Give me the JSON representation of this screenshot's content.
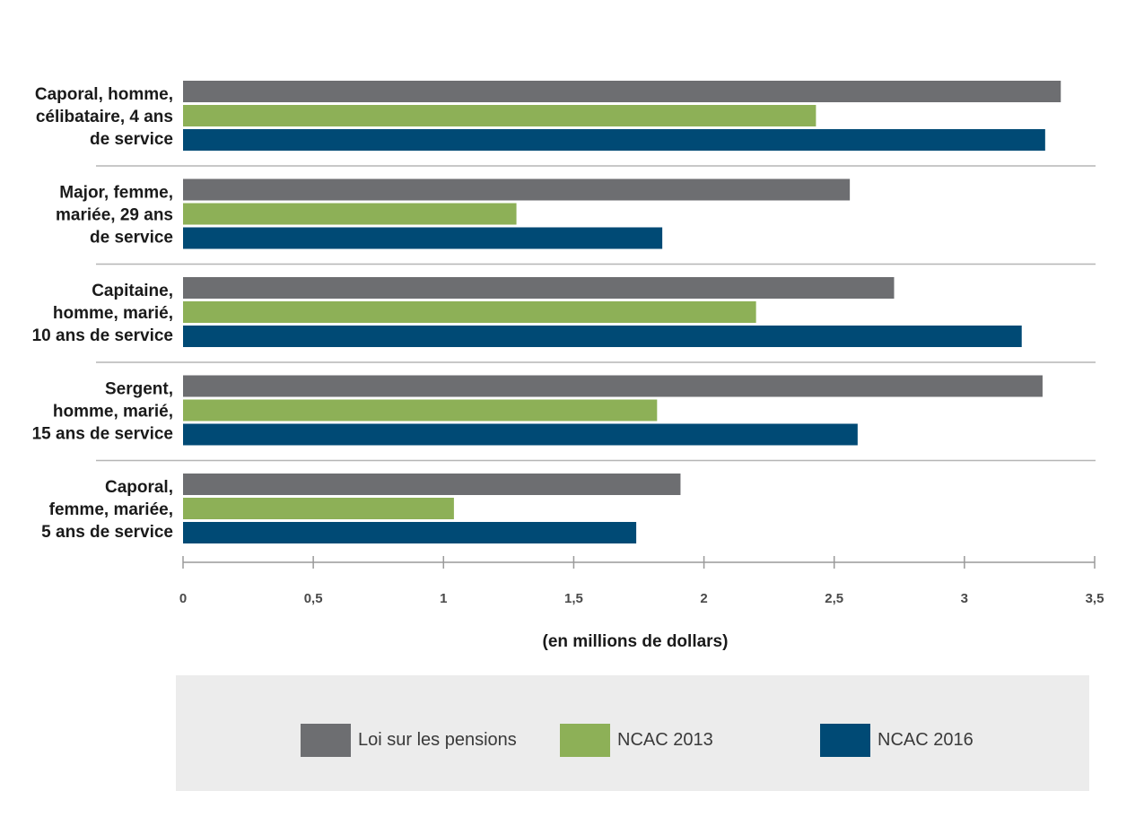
{
  "chart_data": {
    "type": "bar",
    "orientation": "horizontal",
    "categories": [
      [
        "Caporal, homme,",
        "célibataire, 4 ans",
        "de service"
      ],
      [
        "Major, femme,",
        "mariée, 29 ans",
        "de service"
      ],
      [
        "Capitaine,",
        "homme, marié,",
        "10 ans de service"
      ],
      [
        "Sergent,",
        "homme, marié,",
        "15 ans de service"
      ],
      [
        "Caporal,",
        "femme, mariée,",
        "5 ans de service"
      ]
    ],
    "series": [
      {
        "name": "Loi sur les pensions",
        "color": "#6d6e71",
        "values": [
          3.37,
          2.56,
          2.73,
          3.3,
          1.91
        ]
      },
      {
        "name": "NCAC 2013",
        "color": "#8db057",
        "values": [
          2.43,
          1.28,
          2.2,
          1.82,
          1.04
        ]
      },
      {
        "name": "NCAC 2016",
        "color": "#004a75",
        "values": [
          3.31,
          1.84,
          3.22,
          2.59,
          1.74
        ]
      }
    ],
    "xlim": [
      0,
      3.5
    ],
    "xticks": [
      "0",
      "0,5",
      "1",
      "1,5",
      "2",
      "2,5",
      "3",
      "3,5"
    ],
    "xlabel": "(en millions de dollars)",
    "legend": "bottom",
    "grid": false
  }
}
